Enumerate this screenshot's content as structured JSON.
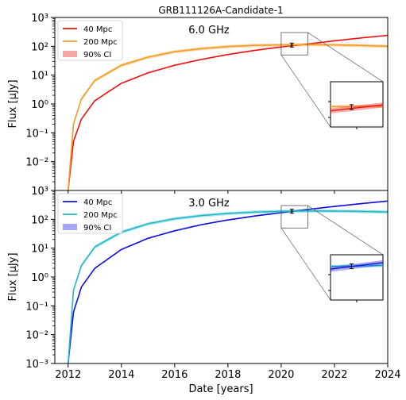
{
  "title": "GRB111126A-Candidate-1",
  "xlabel": "Date [years]",
  "chart_data": [
    {
      "type": "line",
      "title": "GRB111126A-Candidate-1",
      "annotation": "6.0 GHz",
      "ylabel": "Flux [μJy]",
      "yscale": "log",
      "xlim": [
        2011.5,
        2024.0
      ],
      "ylim": [
        0.001,
        1000
      ],
      "x_ticks": [
        2012,
        2014,
        2016,
        2018,
        2020,
        2022,
        2024
      ],
      "y_tick_exponents": [
        -3,
        -2,
        -1,
        0,
        1,
        2,
        3
      ],
      "legend": {
        "placement": "top-left",
        "entries": [
          "40 Mpc",
          "200 Mpc",
          "90% CI"
        ]
      },
      "series": [
        {
          "name": "40 Mpc",
          "color": "#ee1111",
          "x": [
            2012.0,
            2012.2,
            2012.5,
            2013.0,
            2014.0,
            2015.0,
            2016.0,
            2017.0,
            2018.0,
            2019.0,
            2020.0,
            2021.0,
            2022.0,
            2023.0,
            2024.0
          ],
          "y": [
            0.001,
            0.05,
            0.3,
            1.3,
            5.2,
            12,
            22,
            35,
            52,
            72,
            95,
            120,
            155,
            195,
            240
          ]
        },
        {
          "name": "200 Mpc",
          "color": "#f39b23",
          "x": [
            2012.0,
            2012.2,
            2012.5,
            2013.0,
            2014.0,
            2015.0,
            2016.0,
            2017.0,
            2018.0,
            2019.0,
            2020.0,
            2021.0,
            2022.0,
            2023.0,
            2024.0
          ],
          "y": [
            0.001,
            0.2,
            1.5,
            6.5,
            22,
            42,
            65,
            83,
            98,
            108,
            112,
            114,
            112,
            107,
            100
          ]
        }
      ],
      "ci_band": {
        "name": "90% CI",
        "color": "#f08080"
      },
      "observation": {
        "x": 2020.4,
        "y": 110
      },
      "inset": {
        "zoom_x": [
          2020.0,
          2021.0
        ],
        "zoom_y": [
          50,
          300
        ]
      }
    },
    {
      "type": "line",
      "annotation": "3.0 GHz",
      "xlabel": "Date [years]",
      "ylabel": "Flux [μJy]",
      "yscale": "log",
      "xlim": [
        2011.5,
        2024.0
      ],
      "ylim": [
        0.001,
        1000
      ],
      "x_ticks": [
        2012,
        2014,
        2016,
        2018,
        2020,
        2022,
        2024
      ],
      "y_tick_exponents": [
        -3,
        -2,
        -1,
        0,
        1,
        2,
        3
      ],
      "legend": {
        "placement": "top-left",
        "entries": [
          "40 Mpc",
          "200 Mpc",
          "90% CI"
        ]
      },
      "series": [
        {
          "name": "40 Mpc",
          "color": "#1010dd",
          "x": [
            2012.0,
            2012.2,
            2012.5,
            2013.0,
            2014.0,
            2015.0,
            2016.0,
            2017.0,
            2018.0,
            2019.0,
            2020.0,
            2021.0,
            2022.0,
            2023.0,
            2024.0
          ],
          "y": [
            0.001,
            0.06,
            0.45,
            2.0,
            9,
            22,
            40,
            65,
            95,
            130,
            170,
            220,
            280,
            350,
            430
          ]
        },
        {
          "name": "200 Mpc",
          "color": "#20b8c8",
          "x": [
            2012.0,
            2012.2,
            2012.5,
            2013.0,
            2014.0,
            2015.0,
            2016.0,
            2017.0,
            2018.0,
            2019.0,
            2020.0,
            2021.0,
            2022.0,
            2023.0,
            2024.0
          ],
          "y": [
            0.001,
            0.35,
            2.5,
            11,
            36,
            70,
            105,
            135,
            160,
            178,
            190,
            195,
            194,
            188,
            180
          ]
        }
      ],
      "ci_band": {
        "name": "90% CI",
        "color": "#8080f0"
      },
      "observation": {
        "x": 2020.4,
        "y": 190
      },
      "inset": {
        "zoom_x": [
          2020.0,
          2021.0
        ],
        "zoom_y": [
          50,
          300
        ]
      }
    }
  ]
}
